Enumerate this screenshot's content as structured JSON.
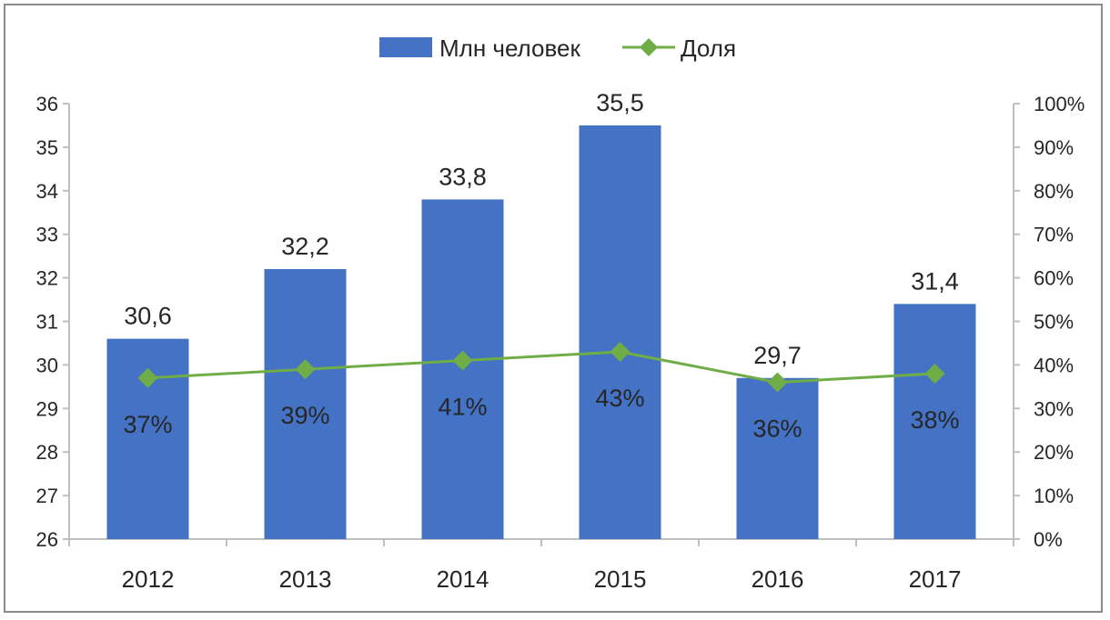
{
  "chart_data": {
    "type": "bar",
    "title": "",
    "xlabel": "",
    "ylabel": "",
    "categories": [
      "2012",
      "2013",
      "2014",
      "2015",
      "2016",
      "2017"
    ],
    "series": [
      {
        "name": "Млн человек",
        "type": "bar",
        "axis": "left",
        "values": [
          30.6,
          32.2,
          33.8,
          35.5,
          29.7,
          31.4
        ],
        "labels": [
          "30,6",
          "32,2",
          "33,8",
          "35,5",
          "29,7",
          "31,4"
        ],
        "color": "#4472c4"
      },
      {
        "name": "Доля",
        "type": "line",
        "axis": "right",
        "values": [
          0.37,
          0.39,
          0.41,
          0.43,
          0.36,
          0.38
        ],
        "labels": [
          "37%",
          "39%",
          "41%",
          "43%",
          "36%",
          "38%"
        ],
        "color": "#70ad47",
        "marker": "diamond"
      }
    ],
    "ylim": [
      26,
      36
    ],
    "y_ticks": [
      "26",
      "27",
      "28",
      "29",
      "30",
      "31",
      "32",
      "33",
      "34",
      "35",
      "36"
    ],
    "y2lim": [
      0,
      1
    ],
    "y2_ticks": [
      "0%",
      "10%",
      "20%",
      "30%",
      "40%",
      "50%",
      "60%",
      "70%",
      "80%",
      "90%",
      "100%"
    ],
    "grid": false,
    "legend_position": "top-center"
  }
}
